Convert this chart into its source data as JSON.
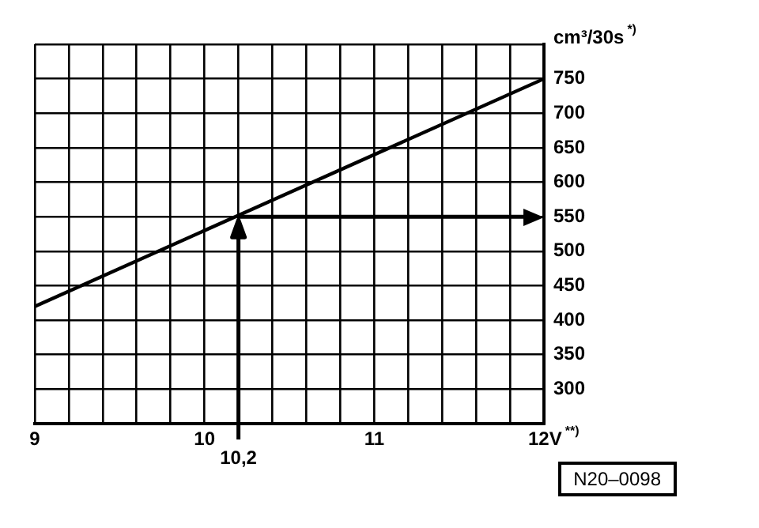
{
  "chart_data": {
    "type": "line",
    "ylabel": "cm³/30s$^{*)}$",
    "x": [
      9,
      12
    ],
    "series": [
      {
        "color": "#000000",
        "values": [
          420,
          750
        ]
      }
    ],
    "xlim": [
      9,
      12
    ],
    "xticks": [
      9,
      {
        "value": 9.2,
        "label": null
      },
      {
        "value": 9.4,
        "label": null
      },
      {
        "value": 9.6,
        "label": null
      },
      {
        "value": 9.8,
        "label": null
      },
      10,
      {
        "value": 10.2,
        "label": null
      },
      {
        "value": 10.4,
        "label": null
      },
      {
        "value": 10.6,
        "label": null
      },
      {
        "value": 10.8,
        "label": null
      },
      11,
      {
        "value": 11.2,
        "label": null
      },
      {
        "value": 11.4,
        "label": null
      },
      {
        "value": 11.6,
        "label": null
      },
      {
        "value": 11.8,
        "label": null
      },
      {
        "value": 12,
        "label": "12V$^{**)}$"
      }
    ],
    "ylim": [
      250,
      800
    ],
    "yticks": [
      {
        "value": 250,
        "label": null
      },
      300,
      350,
      400,
      450,
      500,
      550,
      600,
      650,
      700,
      750,
      {
        "value": 800,
        "label": null
      }
    ],
    "ref_lines": [
      {
        "axis": "x",
        "value": 10.2,
        "label": "10,2",
        "color": "#000000"
      },
      {
        "axis": "y",
        "value": 550,
        "label": null,
        "color": "#000000"
      }
    ],
    "annotations": [
      "N20–0098"
    ],
    "grid": true,
    "legend": false,
    "marker": "none",
    "line_style": "solid"
  }
}
